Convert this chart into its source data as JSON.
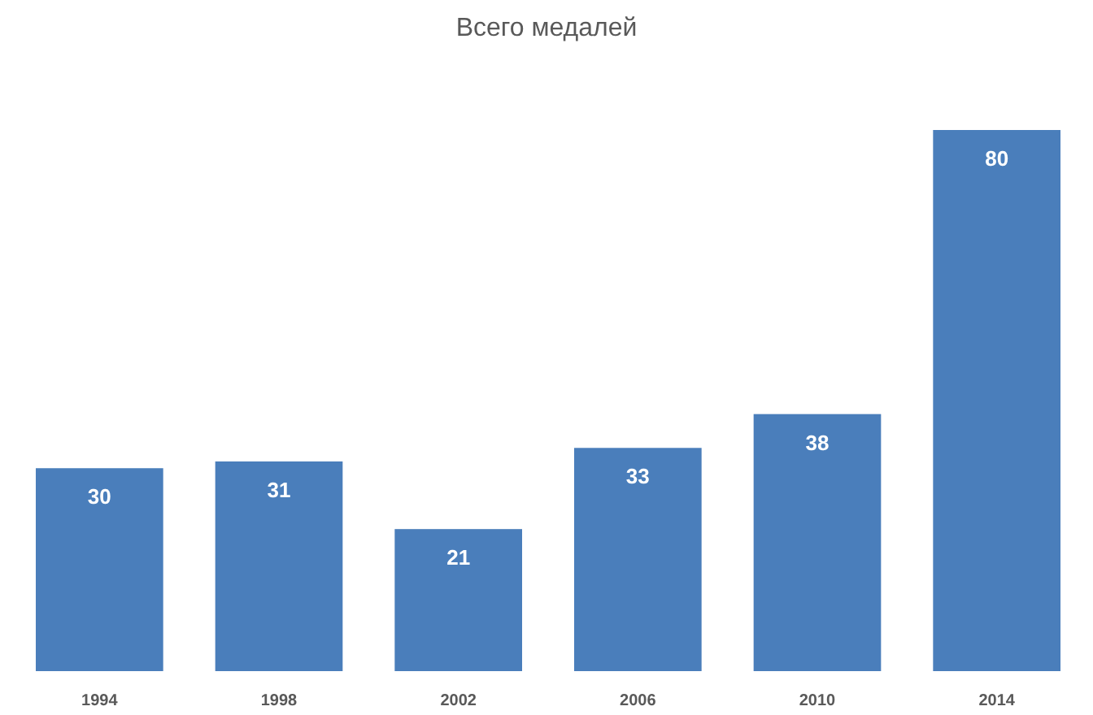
{
  "chart_data": {
    "type": "bar",
    "title": "Всего медалей",
    "categories": [
      "1994",
      "1998",
      "2002",
      "2006",
      "2010",
      "2014"
    ],
    "values": [
      30,
      31,
      21,
      33,
      38,
      80
    ],
    "color": "#4a7ebb",
    "data_labels": true
  }
}
